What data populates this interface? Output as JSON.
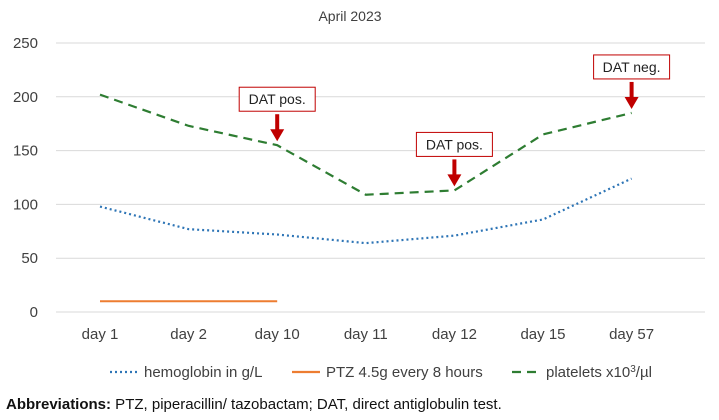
{
  "chart_data": {
    "type": "line",
    "title": "April 2023",
    "xlabel": "",
    "ylabel": "",
    "categories": [
      "day 1",
      "day 2",
      "day 10",
      "day 11",
      "day 12",
      "day 15",
      "day 57"
    ],
    "ylim": [
      0,
      250
    ],
    "yticks": [
      "0",
      "50",
      "100",
      "150",
      "200",
      "250"
    ],
    "grid": true,
    "legend_position": "bottom",
    "series": [
      {
        "name": "hemoglobin in g/L",
        "values": [
          98,
          77,
          72,
          64,
          71,
          86,
          124
        ],
        "color": "#2e75b6",
        "style": "dotted"
      },
      {
        "name": "PTZ 4.5g every 8 hours",
        "values": [
          10,
          10,
          10,
          null,
          null,
          null,
          null
        ],
        "color": "#ed7d31",
        "style": "solid"
      },
      {
        "name": "platelets x10",
        "name_sup": "3",
        "name_suffix": "/µl",
        "values": [
          202,
          173,
          155,
          109,
          113,
          165,
          185
        ],
        "color": "#2e7d32",
        "style": "dashed"
      }
    ],
    "annotations": [
      {
        "text": "DAT pos.",
        "category_index": 2,
        "y": 155
      },
      {
        "text": "DAT pos.",
        "category_index": 4,
        "y": 113
      },
      {
        "text": "DAT neg.",
        "category_index": 6,
        "y": 185
      }
    ]
  },
  "caption": {
    "label": "Abbreviations:",
    "text": " PTZ, piperacillin/ tazobactam; DAT, direct antiglobulin test."
  },
  "colors": {
    "annotation_arrow": "#c00000",
    "grid": "#d9d9d9"
  }
}
